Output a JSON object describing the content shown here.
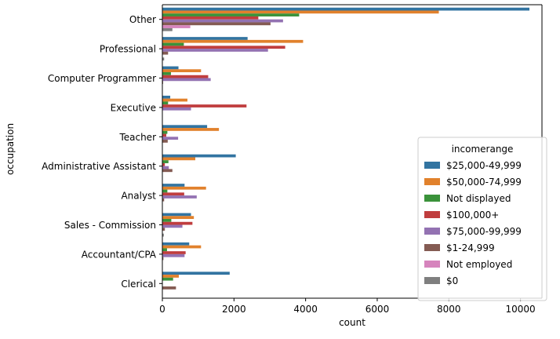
{
  "chart_data": {
    "type": "bar",
    "orientation": "horizontal",
    "xlabel": "count",
    "ylabel": "occupation",
    "xlim": [
      0,
      10600
    ],
    "xticks": [
      0,
      2000,
      4000,
      6000,
      8000,
      10000
    ],
    "xtick_labels": [
      "0",
      "2000",
      "4000",
      "6000",
      "8000",
      "10000"
    ],
    "grid": false,
    "legend_position": "bottom-right",
    "legend_title": "incomerange",
    "categories": [
      "Other",
      "Professional",
      "Computer Programmer",
      "Executive",
      "Teacher",
      "Administrative Assistant",
      "Analyst",
      "Sales - Commission",
      "Accountant/CPA",
      "Clerical"
    ],
    "series": [
      {
        "name": "$25,000-49,999",
        "color": "#3274a1",
        "values": [
          10250,
          2380,
          450,
          220,
          1250,
          2050,
          620,
          800,
          750,
          1880
        ]
      },
      {
        "name": "$50,000-74,999",
        "color": "#e1812c",
        "values": [
          7720,
          3930,
          1080,
          700,
          1580,
          920,
          1220,
          880,
          1080,
          460
        ]
      },
      {
        "name": "Not displayed",
        "color": "#3a923a",
        "values": [
          3820,
          600,
          240,
          160,
          140,
          170,
          140,
          250,
          130,
          300
        ]
      },
      {
        "name": "$100,000+",
        "color": "#c03d3e",
        "values": [
          2680,
          3430,
          1280,
          2350,
          110,
          70,
          610,
          840,
          650,
          0
        ]
      },
      {
        "name": "$75,000-99,999",
        "color": "#9372b2",
        "values": [
          3370,
          2950,
          1350,
          800,
          440,
          180,
          960,
          560,
          620,
          10
        ]
      },
      {
        "name": "$1-24,999",
        "color": "#845b53",
        "values": [
          3020,
          160,
          20,
          10,
          150,
          280,
          50,
          70,
          30,
          380
        ]
      },
      {
        "name": "Not employed",
        "color": "#d684bd",
        "values": [
          780,
          10,
          0,
          0,
          0,
          0,
          0,
          0,
          0,
          0
        ]
      },
      {
        "name": "$0",
        "color": "#7f7f7f",
        "values": [
          280,
          50,
          0,
          0,
          0,
          0,
          0,
          40,
          0,
          0
        ]
      }
    ]
  }
}
